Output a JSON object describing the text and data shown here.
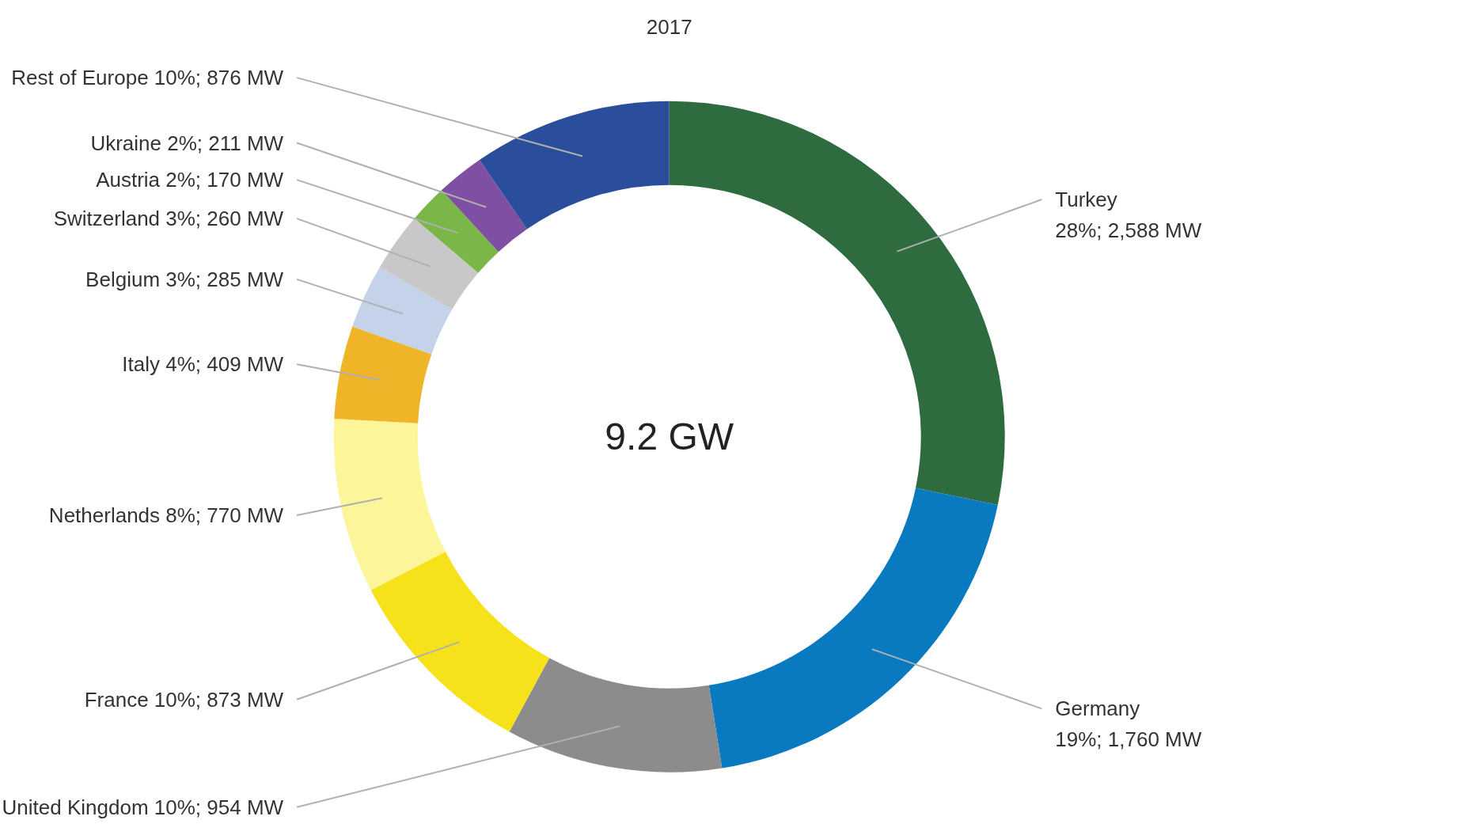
{
  "chart_data": {
    "type": "donut",
    "title": "2017",
    "annotations": [
      "9.2 GW"
    ],
    "categories": [
      "Turkey",
      "Germany",
      "United Kingdom",
      "France",
      "Netherlands",
      "Italy",
      "Belgium",
      "Switzerland",
      "Austria",
      "Ukraine",
      "Rest of Europe"
    ],
    "values": [
      2588,
      1760,
      954,
      873,
      770,
      409,
      285,
      260,
      170,
      211,
      876
    ],
    "value_labels": [
      "28%; 2,588 MW",
      "19%; 1,760 MW",
      "10%; 954 MW",
      "10%; 873 MW",
      "8%; 770 MW",
      "4%; 409 MW",
      "3%; 285 MW",
      "3%; 260 MW",
      "2%; 170 MW",
      "2%; 211 MW",
      "10%; 876 MW"
    ],
    "colors": [
      "#2e6b3e",
      "#0a7ac0",
      "#8c8c8c",
      "#f5e21b",
      "#fdf59a",
      "#f0b429",
      "#c5d3ea",
      "#c8c8c8",
      "#7ab648",
      "#7f4fa3",
      "#2a4d9c"
    ]
  }
}
